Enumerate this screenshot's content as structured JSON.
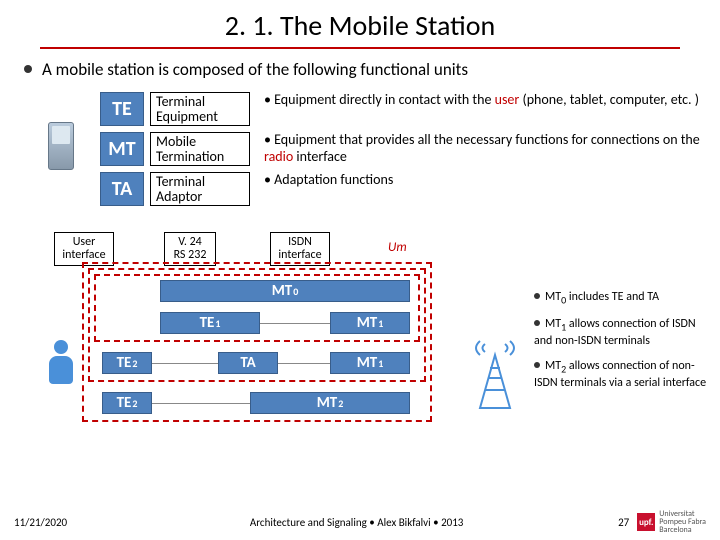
{
  "title": "2. 1. The Mobile Station",
  "intro": "A mobile station is composed of the following functional units",
  "defs": [
    {
      "abbr": "TE",
      "full": "Terminal Equipment",
      "desc_pre": "Equipment directly in contact with the ",
      "desc_red": "user",
      "desc_post": " (phone, tablet, computer, etc. )"
    },
    {
      "abbr": "MT",
      "full": "Mobile Termination",
      "desc_pre": "Equipment that provides all the necessary functions for connections on the ",
      "desc_red": "radio",
      "desc_post": " interface"
    },
    {
      "abbr": "TA",
      "full": "Terminal Adaptor",
      "desc_pre": "Adaptation functions",
      "desc_red": "",
      "desc_post": ""
    }
  ],
  "iface": {
    "user": "User\ninterface",
    "v24": "V. 24\nRS 232",
    "isdn": "ISDN\ninterface",
    "um": "Um"
  },
  "blocks": {
    "mt0": "MT",
    "mt0s": "0",
    "te1": "TE",
    "te1s": "1",
    "mt1a": "MT",
    "mt1as": "1",
    "te2a": "TE",
    "te2as": "2",
    "ta": "TA",
    "mt1b": "MT",
    "mt1bs": "1",
    "te2b": "TE",
    "te2bs": "2",
    "mt2": "MT",
    "mt2s": "2"
  },
  "notes": [
    {
      "p": "MT",
      "s": "0",
      "t": " includes TE and TA"
    },
    {
      "p": "MT",
      "s": "1",
      "t": " allows connection of ISDN and non-ISDN terminals"
    },
    {
      "p": "MT",
      "s": "2",
      "t": " allows connection of non-ISDN terminals via a serial interface"
    }
  ],
  "footer": {
    "date": "11/21/2020",
    "mid": "Architecture and Signaling • Alex Bikfalvi • 2013",
    "page": "27",
    "uni": "Universitat\nPompeu Fabra\nBarcelona"
  },
  "colors": {
    "accent": "#c00000",
    "box": "#4f81bd",
    "border": "#385d8a"
  }
}
